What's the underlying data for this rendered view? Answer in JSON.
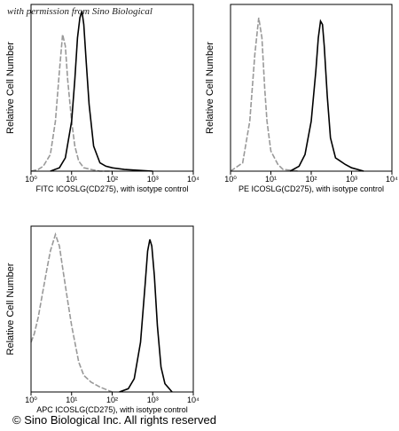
{
  "watermark": "with permission from Sino Biological",
  "footer": "© Sino Biological Inc. All rights reserved",
  "chart_data": [
    {
      "type": "line",
      "log_x": true,
      "xlim": [
        1,
        10000
      ],
      "ylim": [
        0,
        100
      ],
      "xticks": [
        {
          "value": 1,
          "label": "10⁰"
        },
        {
          "value": 10,
          "label": "10¹"
        },
        {
          "value": 100,
          "label": "10²"
        },
        {
          "value": 1000,
          "label": "10³"
        },
        {
          "value": 10000,
          "label": "10⁴"
        }
      ],
      "x_label": "FITC ICOSLG(CD275), with isotype control",
      "y_label": "Relative Cell Number",
      "series": [
        {
          "color": "#999999",
          "dashed": true,
          "x": [
            1,
            1.5,
            2,
            3,
            4,
            5,
            6,
            7,
            8,
            10,
            12,
            15,
            20,
            30,
            50,
            100
          ],
          "values": [
            0,
            1,
            3,
            10,
            30,
            60,
            82,
            75,
            55,
            30,
            15,
            6,
            2,
            1,
            0,
            0
          ]
        },
        {
          "color": "#000000",
          "dashed": false,
          "x": [
            3,
            5,
            7,
            10,
            12,
            14,
            16,
            18,
            20,
            23,
            27,
            35,
            50,
            70,
            100,
            200,
            1000
          ],
          "values": [
            0,
            2,
            8,
            30,
            55,
            80,
            92,
            96,
            88,
            65,
            40,
            15,
            5,
            3,
            2,
            1,
            0
          ]
        }
      ]
    },
    {
      "type": "line",
      "log_x": true,
      "xlim": [
        1,
        10000
      ],
      "ylim": [
        0,
        100
      ],
      "xticks": [
        {
          "value": 1,
          "label": "10⁰"
        },
        {
          "value": 10,
          "label": "10¹"
        },
        {
          "value": 100,
          "label": "10²"
        },
        {
          "value": 1000,
          "label": "10³"
        },
        {
          "value": 10000,
          "label": "10⁴"
        }
      ],
      "x_label": "PE ICOSLG(CD275), with isotype control",
      "y_label": "Relative Cell Number",
      "series": [
        {
          "color": "#999999",
          "dashed": true,
          "x": [
            1,
            2,
            3,
            4,
            5,
            6,
            7,
            8,
            10,
            15,
            20,
            50
          ],
          "values": [
            0,
            5,
            30,
            70,
            92,
            80,
            50,
            30,
            12,
            4,
            1,
            0
          ]
        },
        {
          "color": "#000000",
          "dashed": false,
          "x": [
            30,
            50,
            70,
            100,
            130,
            150,
            170,
            190,
            210,
            250,
            300,
            400,
            700,
            1000,
            2000
          ],
          "values": [
            0,
            3,
            10,
            30,
            60,
            80,
            90,
            88,
            75,
            45,
            20,
            8,
            4,
            2,
            0
          ]
        }
      ]
    },
    {
      "type": "line",
      "log_x": true,
      "xlim": [
        1,
        10000
      ],
      "ylim": [
        0,
        100
      ],
      "xticks": [
        {
          "value": 1,
          "label": "10⁰"
        },
        {
          "value": 10,
          "label": "10¹"
        },
        {
          "value": 100,
          "label": "10²"
        },
        {
          "value": 1000,
          "label": "10³"
        },
        {
          "value": 10000,
          "label": "10⁴"
        }
      ],
      "x_label": "APC ICOSLG(CD275), with isotype control",
      "y_label": "Relative Cell Number",
      "series": [
        {
          "color": "#999999",
          "dashed": true,
          "x": [
            1,
            1.2,
            1.5,
            2,
            2.5,
            3,
            4,
            5,
            6,
            8,
            10,
            15,
            20,
            30,
            50,
            100
          ],
          "values": [
            30,
            35,
            45,
            62,
            75,
            85,
            95,
            88,
            75,
            55,
            40,
            18,
            10,
            6,
            3,
            0
          ]
        },
        {
          "color": "#000000",
          "dashed": false,
          "x": [
            150,
            250,
            350,
            500,
            650,
            750,
            850,
            950,
            1100,
            1300,
            1600,
            2000,
            3000
          ],
          "values": [
            0,
            2,
            8,
            30,
            65,
            85,
            92,
            88,
            70,
            40,
            15,
            5,
            0
          ]
        }
      ]
    }
  ]
}
